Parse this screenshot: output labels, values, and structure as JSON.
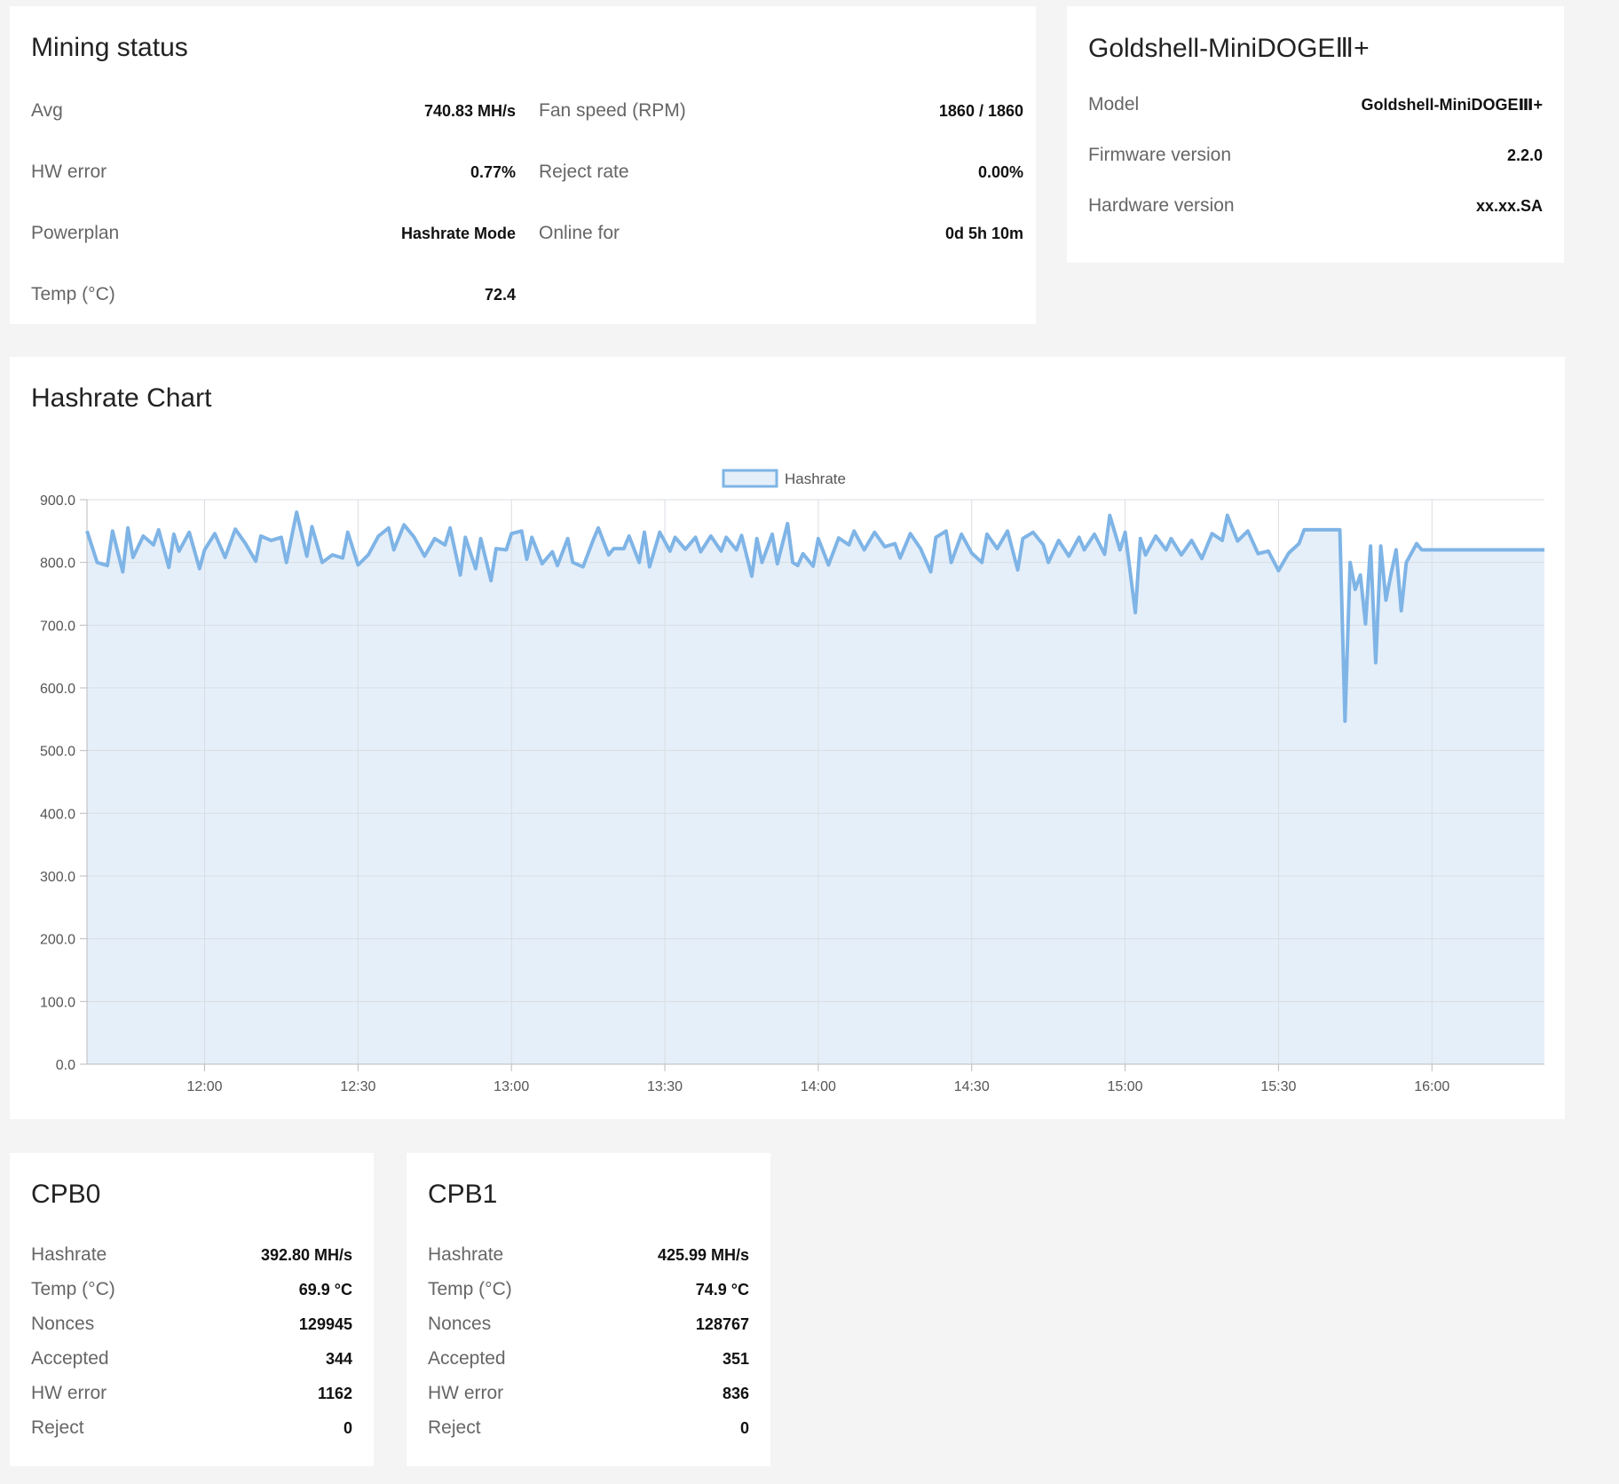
{
  "mining_status": {
    "title": "Mining status",
    "left": [
      {
        "label": "Avg",
        "value": "740.83 MH/s"
      },
      {
        "label": "HW error",
        "value": "0.77%"
      },
      {
        "label": "Powerplan",
        "value": "Hashrate Mode"
      },
      {
        "label": "Temp (°C)",
        "value": "72.4"
      }
    ],
    "right": [
      {
        "label": "Fan speed (RPM)",
        "value": "1860 / 1860"
      },
      {
        "label": "Reject rate",
        "value": "0.00%"
      },
      {
        "label": "Online for",
        "value": "0d 5h 10m"
      }
    ]
  },
  "device": {
    "title": "Goldshell-MiniDOGEⅢ+",
    "rows": [
      {
        "label": "Model",
        "value": "Goldshell-MiniDOGEⅢ+"
      },
      {
        "label": "Firmware version",
        "value": "2.2.0"
      },
      {
        "label": "Hardware version",
        "value": "xx.xx.SA"
      }
    ]
  },
  "chart_card": {
    "title": "Hashrate Chart"
  },
  "chart_data": {
    "type": "area",
    "legend": "top-center",
    "grid": true,
    "series": [
      {
        "name": "Hashrate",
        "color": "#7fb4e6",
        "fill": "#e5eff9"
      }
    ],
    "ylim": [
      0,
      900
    ],
    "yticks": [
      "0.0",
      "100.0",
      "200.0",
      "300.0",
      "400.0",
      "500.0",
      "600.0",
      "700.0",
      "800.0",
      "900.0"
    ],
    "xlim": [
      "11:37",
      "16:22"
    ],
    "xticks": [
      "12:00",
      "12:30",
      "13:00",
      "13:30",
      "14:00",
      "14:30",
      "15:00",
      "15:30",
      "16:00"
    ],
    "points": [
      [
        "11:37",
        850
      ],
      [
        "11:39",
        800
      ],
      [
        "11:41",
        795
      ],
      [
        "11:42",
        850
      ],
      [
        "11:44",
        785
      ],
      [
        "11:45",
        855
      ],
      [
        "11:46",
        808
      ],
      [
        "11:48",
        842
      ],
      [
        "11:50",
        828
      ],
      [
        "11:51",
        852
      ],
      [
        "11:53",
        792
      ],
      [
        "11:54",
        845
      ],
      [
        "11:55",
        818
      ],
      [
        "11:57",
        848
      ],
      [
        "11:59",
        790
      ],
      [
        "12:00",
        820
      ],
      [
        "12:02",
        846
      ],
      [
        "12:04",
        808
      ],
      [
        "12:06",
        853
      ],
      [
        "12:08",
        830
      ],
      [
        "12:10",
        802
      ],
      [
        "12:11",
        842
      ],
      [
        "12:13",
        835
      ],
      [
        "12:15",
        840
      ],
      [
        "12:16",
        800
      ],
      [
        "12:18",
        880
      ],
      [
        "12:20",
        810
      ],
      [
        "12:21",
        857
      ],
      [
        "12:23",
        800
      ],
      [
        "12:25",
        812
      ],
      [
        "12:27",
        807
      ],
      [
        "12:28",
        848
      ],
      [
        "12:30",
        796
      ],
      [
        "12:32",
        812
      ],
      [
        "12:34",
        842
      ],
      [
        "12:36",
        855
      ],
      [
        "12:37",
        820
      ],
      [
        "12:39",
        860
      ],
      [
        "12:41",
        840
      ],
      [
        "12:43",
        810
      ],
      [
        "12:45",
        838
      ],
      [
        "12:47",
        828
      ],
      [
        "12:48",
        855
      ],
      [
        "12:50",
        780
      ],
      [
        "12:51",
        840
      ],
      [
        "12:53",
        790
      ],
      [
        "12:54",
        838
      ],
      [
        "12:56",
        771
      ],
      [
        "12:57",
        822
      ],
      [
        "12:59",
        820
      ],
      [
        "13:00",
        846
      ],
      [
        "13:02",
        850
      ],
      [
        "13:03",
        805
      ],
      [
        "13:04",
        840
      ],
      [
        "13:06",
        798
      ],
      [
        "13:08",
        817
      ],
      [
        "13:09",
        795
      ],
      [
        "13:11",
        838
      ],
      [
        "13:12",
        800
      ],
      [
        "13:14",
        793
      ],
      [
        "13:16",
        836
      ],
      [
        "13:17",
        855
      ],
      [
        "13:19",
        812
      ],
      [
        "13:20",
        822
      ],
      [
        "13:22",
        822
      ],
      [
        "13:23",
        842
      ],
      [
        "13:25",
        800
      ],
      [
        "13:26",
        848
      ],
      [
        "13:27",
        793
      ],
      [
        "13:29",
        848
      ],
      [
        "13:31",
        818
      ],
      [
        "13:32",
        840
      ],
      [
        "13:34",
        821
      ],
      [
        "13:36",
        840
      ],
      [
        "13:37",
        817
      ],
      [
        "13:39",
        842
      ],
      [
        "13:41",
        818
      ],
      [
        "13:42",
        840
      ],
      [
        "13:44",
        820
      ],
      [
        "13:45",
        843
      ],
      [
        "13:47",
        778
      ],
      [
        "13:48",
        838
      ],
      [
        "13:49",
        800
      ],
      [
        "13:51",
        845
      ],
      [
        "13:52",
        798
      ],
      [
        "13:54",
        862
      ],
      [
        "13:55",
        800
      ],
      [
        "13:56",
        795
      ],
      [
        "13:57",
        814
      ],
      [
        "13:59",
        794
      ],
      [
        "14:00",
        838
      ],
      [
        "14:02",
        796
      ],
      [
        "14:04",
        839
      ],
      [
        "14:06",
        828
      ],
      [
        "14:07",
        850
      ],
      [
        "14:09",
        820
      ],
      [
        "14:11",
        848
      ],
      [
        "14:13",
        825
      ],
      [
        "14:15",
        830
      ],
      [
        "14:16",
        807
      ],
      [
        "14:18",
        846
      ],
      [
        "14:20",
        822
      ],
      [
        "14:22",
        785
      ],
      [
        "14:23",
        840
      ],
      [
        "14:25",
        850
      ],
      [
        "14:26",
        800
      ],
      [
        "14:28",
        845
      ],
      [
        "14:30",
        815
      ],
      [
        "14:32",
        800
      ],
      [
        "14:33",
        845
      ],
      [
        "14:35",
        822
      ],
      [
        "14:37",
        850
      ],
      [
        "14:39",
        788
      ],
      [
        "14:40",
        838
      ],
      [
        "14:42",
        848
      ],
      [
        "14:44",
        828
      ],
      [
        "14:45",
        800
      ],
      [
        "14:47",
        835
      ],
      [
        "14:49",
        810
      ],
      [
        "14:51",
        840
      ],
      [
        "14:52",
        820
      ],
      [
        "14:54",
        845
      ],
      [
        "14:56",
        813
      ],
      [
        "14:57",
        875
      ],
      [
        "14:59",
        820
      ],
      [
        "15:00",
        848
      ],
      [
        "15:02",
        720
      ],
      [
        "15:03",
        838
      ],
      [
        "15:04",
        812
      ],
      [
        "15:06",
        842
      ],
      [
        "15:08",
        820
      ],
      [
        "15:09",
        838
      ],
      [
        "15:11",
        812
      ],
      [
        "15:13",
        835
      ],
      [
        "15:15",
        806
      ],
      [
        "15:17",
        846
      ],
      [
        "15:19",
        835
      ],
      [
        "15:20",
        875
      ],
      [
        "15:22",
        834
      ],
      [
        "15:24",
        850
      ],
      [
        "15:26",
        814
      ],
      [
        "15:28",
        818
      ],
      [
        "15:30",
        787
      ],
      [
        "15:32",
        815
      ],
      [
        "15:34",
        830
      ],
      [
        "15:35",
        852
      ],
      [
        "15:42",
        852
      ],
      [
        "15:43",
        547
      ],
      [
        "15:44",
        800
      ],
      [
        "15:45",
        757
      ],
      [
        "15:46",
        780
      ],
      [
        "15:47",
        702
      ],
      [
        "15:48",
        826
      ],
      [
        "15:49",
        640
      ],
      [
        "15:50",
        826
      ],
      [
        "15:51",
        740
      ],
      [
        "15:52",
        782
      ],
      [
        "15:53",
        820
      ],
      [
        "15:54",
        723
      ],
      [
        "15:55",
        800
      ],
      [
        "15:57",
        830
      ],
      [
        "15:58",
        820
      ],
      [
        "16:22",
        820
      ]
    ]
  }
}
